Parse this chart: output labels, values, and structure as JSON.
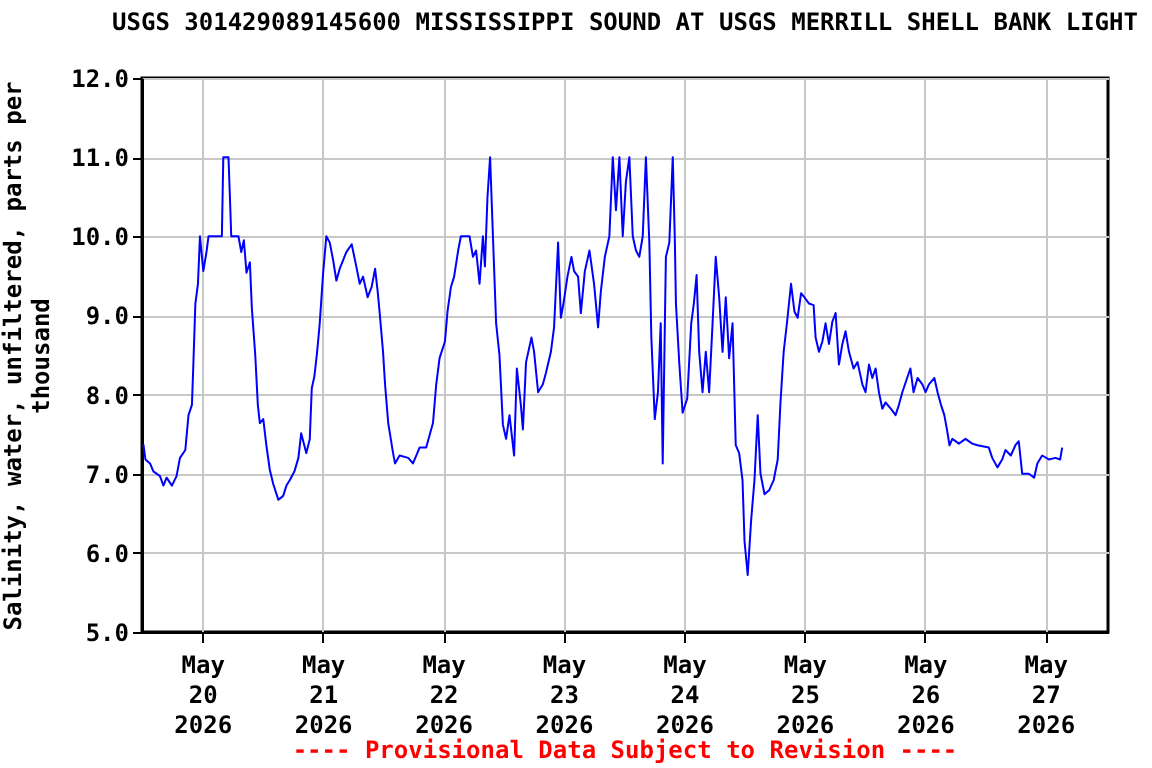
{
  "chart_data": {
    "type": "line",
    "title": "USGS 301429089145600 MISSISSIPPI SOUND AT USGS MERRILL SHELL BANK LIGHT",
    "ylabel": "Salinity, water, unfiltered, parts per thousand",
    "annotations": [
      "---- Provisional Data Subject to Revision ----"
    ],
    "xlim": [
      "2026-05-19T12:00",
      "2026-05-27T12:30"
    ],
    "xticks": [
      {
        "value": "2026-05-20",
        "label": "May 20 2026"
      },
      {
        "value": "2026-05-21",
        "label": "May 21 2026"
      },
      {
        "value": "2026-05-22",
        "label": "May 22 2026"
      },
      {
        "value": "2026-05-23",
        "label": "May 23 2026"
      },
      {
        "value": "2026-05-24",
        "label": "May 24 2026"
      },
      {
        "value": "2026-05-25",
        "label": "May 25 2026"
      },
      {
        "value": "2026-05-26",
        "label": "May 26 2026"
      },
      {
        "value": "2026-05-27",
        "label": "May 27 2026"
      }
    ],
    "ylim": [
      5,
      12
    ],
    "yticks": [
      {
        "value": 5,
        "label": "5.0"
      },
      {
        "value": 6,
        "label": "6.0"
      },
      {
        "value": 7,
        "label": "7.0"
      },
      {
        "value": 8,
        "label": "8.0"
      },
      {
        "value": 9,
        "label": "9.0"
      },
      {
        "value": 10,
        "label": "10.0"
      },
      {
        "value": 11,
        "label": "11.0"
      },
      {
        "value": 12,
        "label": "12.0"
      }
    ],
    "grid": true,
    "marker": "none",
    "line_style": "solid",
    "series": [
      {
        "color": "#0000ff",
        "x": [
          "2026-05-19T12:17",
          "2026-05-19T12:41",
          "2026-05-19T13:36",
          "2026-05-19T14:16",
          "2026-05-19T15:35",
          "2026-05-19T16:16",
          "2026-05-19T16:54",
          "2026-05-19T17:58",
          "2026-05-19T18:53",
          "2026-05-19T19:34",
          "2026-05-19T20:38",
          "2026-05-19T21:16",
          "2026-05-19T21:57",
          "2026-05-19T22:14",
          "2026-05-19T22:38",
          "2026-05-19T23:09",
          "2026-05-19T23:33",
          "2026-05-20T00:13",
          "2026-05-20T00:51",
          "2026-05-20T01:15",
          "2026-05-20T03:55",
          "2026-05-20T04:12",
          "2026-05-20T05:14",
          "2026-05-20T05:31",
          "2026-05-20T05:47",
          "2026-05-20T07:13",
          "2026-05-20T07:47",
          "2026-05-20T08:18",
          "2026-05-20T08:49",
          "2026-05-20T09:30",
          "2026-05-20T09:53",
          "2026-05-20T10:34",
          "2026-05-20T11:05",
          "2026-05-20T11:29",
          "2026-05-20T12:10",
          "2026-05-20T12:48",
          "2026-05-20T13:28",
          "2026-05-20T14:09",
          "2026-05-20T15:11",
          "2026-05-20T16:08",
          "2026-05-20T16:47",
          "2026-05-20T17:28",
          "2026-05-20T18:23",
          "2026-05-20T19:10",
          "2026-05-20T19:43",
          "2026-05-20T20:45",
          "2026-05-20T21:26",
          "2026-05-20T21:50",
          "2026-05-20T22:21",
          "2026-05-20T22:54",
          "2026-05-20T23:25",
          "2026-05-21T00:06",
          "2026-05-21T00:44",
          "2026-05-21T01:25",
          "2026-05-21T02:05",
          "2026-05-21T02:44",
          "2026-05-21T03:24",
          "2026-05-21T04:05",
          "2026-05-21T04:43",
          "2026-05-21T05:47",
          "2026-05-21T06:42",
          "2026-05-21T07:23",
          "2026-05-21T08:03",
          "2026-05-21T08:58",
          "2026-05-21T09:46",
          "2026-05-21T10:27",
          "2026-05-21T10:58",
          "2026-05-21T11:22",
          "2026-05-21T12:02",
          "2026-05-21T12:26",
          "2026-05-21T13:04",
          "2026-05-21T14:02",
          "2026-05-21T14:25",
          "2026-05-21T15:20",
          "2026-05-21T17:03",
          "2026-05-21T18:00",
          "2026-05-21T18:39",
          "2026-05-21T19:19",
          "2026-05-21T20:38",
          "2026-05-21T21:19",
          "2026-05-21T21:59",
          "2026-05-21T22:38",
          "2026-05-21T23:18",
          "2026-05-22T00:22",
          "2026-05-22T00:53",
          "2026-05-22T01:34",
          "2026-05-22T02:12",
          "2026-05-22T03:00",
          "2026-05-22T03:33",
          "2026-05-22T05:16",
          "2026-05-22T05:57",
          "2026-05-22T06:35",
          "2026-05-22T07:16",
          "2026-05-22T07:56",
          "2026-05-22T08:20",
          "2026-05-22T08:51",
          "2026-05-22T09:22",
          "2026-05-22T09:56",
          "2026-05-22T10:34",
          "2026-05-22T11:14",
          "2026-05-22T11:55",
          "2026-05-22T12:33",
          "2026-05-22T13:14",
          "2026-05-22T14:09",
          "2026-05-22T14:42",
          "2026-05-22T15:30",
          "2026-05-22T15:54",
          "2026-05-22T16:32",
          "2026-05-22T17:37",
          "2026-05-22T18:08",
          "2026-05-22T18:56",
          "2026-05-22T19:53",
          "2026-05-22T20:31",
          "2026-05-22T21:29",
          "2026-05-22T22:07",
          "2026-05-22T22:55",
          "2026-05-22T23:28",
          "2026-05-22T23:59",
          "2026-05-23T00:47",
          "2026-05-23T01:35",
          "2026-05-23T02:06",
          "2026-05-23T02:54",
          "2026-05-23T03:27",
          "2026-05-23T04:15",
          "2026-05-23T05:10",
          "2026-05-23T06:05",
          "2026-05-23T06:53",
          "2026-05-23T07:26",
          "2026-05-23T08:14",
          "2026-05-23T09:08",
          "2026-05-23T09:49",
          "2026-05-23T10:27",
          "2026-05-23T11:08",
          "2026-05-23T11:48",
          "2026-05-23T12:26",
          "2026-05-23T13:07",
          "2026-05-23T13:48",
          "2026-05-23T14:26",
          "2026-05-23T15:06",
          "2026-05-23T15:47",
          "2026-05-23T16:25",
          "2026-05-23T17:06",
          "2026-05-23T17:30",
          "2026-05-23T18:11",
          "2026-05-23T18:49",
          "2026-05-23T19:22",
          "2026-05-23T19:46",
          "2026-05-23T20:24",
          "2026-05-23T21:05",
          "2026-05-23T21:46",
          "2026-05-23T22:10",
          "2026-05-23T22:24",
          "2026-05-23T23:05",
          "2026-05-23T23:44",
          "2026-05-24T00:39",
          "2026-05-24T01:27",
          "2026-05-24T01:58",
          "2026-05-24T02:31",
          "2026-05-24T03:02",
          "2026-05-24T03:42",
          "2026-05-24T04:21",
          "2026-05-24T05:01",
          "2026-05-24T05:42",
          "2026-05-24T06:20",
          "2026-05-24T07:01",
          "2026-05-24T07:41",
          "2026-05-24T08:20",
          "2026-05-24T09:00",
          "2026-05-24T09:41",
          "2026-05-24T10:19",
          "2026-05-24T11:00",
          "2026-05-24T11:40",
          "2026-05-24T12:04",
          "2026-05-24T12:42",
          "2026-05-24T13:23",
          "2026-05-24T14:03",
          "2026-05-24T14:42",
          "2026-05-24T15:15",
          "2026-05-24T16:03",
          "2026-05-24T16:58",
          "2026-05-24T17:53",
          "2026-05-24T18:41",
          "2026-05-24T19:14",
          "2026-05-24T19:52",
          "2026-05-24T20:33",
          "2026-05-24T21:20",
          "2026-05-24T22:01",
          "2026-05-24T22:39",
          "2026-05-24T23:20",
          "2026-05-25T00:00",
          "2026-05-25T00:55",
          "2026-05-25T01:50",
          "2026-05-25T02:14",
          "2026-05-25T02:54",
          "2026-05-25T03:35",
          "2026-05-25T04:13",
          "2026-05-25T04:54",
          "2026-05-25T05:34",
          "2026-05-25T06:13",
          "2026-05-25T06:53",
          "2026-05-25T07:34",
          "2026-05-25T08:12",
          "2026-05-25T08:53",
          "2026-05-25T09:48",
          "2026-05-25T10:35",
          "2026-05-25T11:33",
          "2026-05-25T12:11",
          "2026-05-25T12:52",
          "2026-05-25T13:32",
          "2026-05-25T14:11",
          "2026-05-25T14:51",
          "2026-05-25T15:32",
          "2026-05-25T16:10",
          "2026-05-25T17:15",
          "2026-05-25T18:10",
          "2026-05-25T18:50",
          "2026-05-25T19:31",
          "2026-05-25T20:09",
          "2026-05-25T21:07",
          "2026-05-25T21:45",
          "2026-05-25T22:33",
          "2026-05-25T23:30",
          "2026-05-26T00:09",
          "2026-05-26T00:49",
          "2026-05-26T01:54",
          "2026-05-26T02:32",
          "2026-05-26T03:13",
          "2026-05-26T03:53",
          "2026-05-26T04:24",
          "2026-05-26T04:55",
          "2026-05-26T05:29",
          "2026-05-26T06:47",
          "2026-05-26T08:06",
          "2026-05-26T09:27",
          "2026-05-26T10:29",
          "2026-05-26T12:45",
          "2026-05-26T13:26",
          "2026-05-26T14:28",
          "2026-05-26T15:25",
          "2026-05-26T16:04",
          "2026-05-26T17:08",
          "2026-05-26T18:03",
          "2026-05-26T18:43",
          "2026-05-26T19:24",
          "2026-05-26T20:43",
          "2026-05-26T21:47",
          "2026-05-26T22:25",
          "2026-05-26T23:23",
          "2026-05-27T00:42",
          "2026-05-27T02:01",
          "2026-05-27T02:58",
          "2026-05-27T03:22"
        ],
        "values": [
          7.37,
          7.18,
          7.13,
          7.03,
          6.97,
          6.85,
          6.95,
          6.85,
          6.97,
          7.2,
          7.3,
          7.74,
          7.87,
          8.38,
          9.15,
          9.4,
          10.0,
          9.56,
          9.8,
          10.0,
          10.0,
          11.0,
          11.0,
          10.5,
          10.0,
          10.0,
          9.8,
          9.95,
          9.54,
          9.67,
          9.1,
          8.5,
          7.87,
          7.64,
          7.69,
          7.35,
          7.05,
          6.87,
          6.67,
          6.72,
          6.85,
          6.92,
          7.03,
          7.2,
          7.51,
          7.26,
          7.44,
          8.08,
          8.23,
          8.54,
          8.9,
          9.54,
          10.0,
          9.92,
          9.7,
          9.44,
          9.59,
          9.7,
          9.8,
          9.9,
          9.62,
          9.4,
          9.49,
          9.23,
          9.36,
          9.59,
          9.3,
          9.03,
          8.54,
          8.13,
          7.64,
          7.26,
          7.13,
          7.23,
          7.2,
          7.13,
          7.23,
          7.33,
          7.33,
          7.49,
          7.64,
          8.13,
          8.46,
          8.67,
          9.05,
          9.36,
          9.49,
          9.82,
          10.0,
          10.0,
          9.74,
          9.82,
          9.4,
          10.0,
          9.62,
          10.5,
          11.0,
          10.0,
          8.9,
          8.5,
          7.62,
          7.44,
          7.74,
          7.23,
          8.33,
          7.87,
          7.56,
          8.41,
          8.72,
          8.54,
          8.03,
          8.13,
          8.28,
          8.54,
          8.85,
          9.92,
          8.97,
          9.15,
          9.49,
          9.74,
          9.56,
          9.49,
          9.03,
          9.56,
          9.82,
          9.4,
          8.85,
          9.3,
          9.74,
          10.0,
          11.0,
          10.33,
          11.0,
          10.0,
          10.69,
          11.0,
          10.0,
          9.82,
          9.74,
          10.0,
          11.0,
          9.92,
          8.72,
          7.69,
          8.03,
          8.9,
          7.13,
          9.74,
          9.92,
          11.0,
          10.0,
          9.15,
          8.38,
          7.77,
          7.95,
          8.9,
          9.15,
          9.51,
          8.54,
          8.03,
          8.54,
          8.03,
          8.9,
          9.74,
          9.23,
          8.54,
          9.23,
          8.46,
          8.9,
          7.36,
          7.26,
          6.92,
          6.15,
          5.72,
          6.41,
          6.92,
          7.74,
          7.0,
          6.74,
          6.79,
          6.92,
          7.18,
          7.9,
          8.54,
          8.92,
          9.4,
          9.05,
          8.97,
          9.28,
          9.23,
          9.15,
          9.13,
          8.72,
          8.54,
          8.67,
          8.9,
          8.64,
          8.92,
          9.03,
          8.38,
          8.64,
          8.8,
          8.54,
          8.33,
          8.41,
          8.13,
          8.03,
          8.38,
          8.21,
          8.33,
          8.03,
          7.82,
          7.9,
          7.82,
          7.74,
          7.87,
          8.03,
          8.15,
          8.33,
          8.03,
          8.21,
          8.13,
          8.03,
          8.13,
          8.21,
          8.03,
          7.87,
          7.74,
          7.56,
          7.36,
          7.44,
          7.38,
          7.44,
          7.38,
          7.36,
          7.33,
          7.2,
          7.08,
          7.18,
          7.3,
          7.23,
          7.36,
          7.41,
          7.0,
          7.0,
          6.95,
          7.13,
          7.23,
          7.18,
          7.2,
          7.18,
          7.33
        ]
      }
    ]
  }
}
